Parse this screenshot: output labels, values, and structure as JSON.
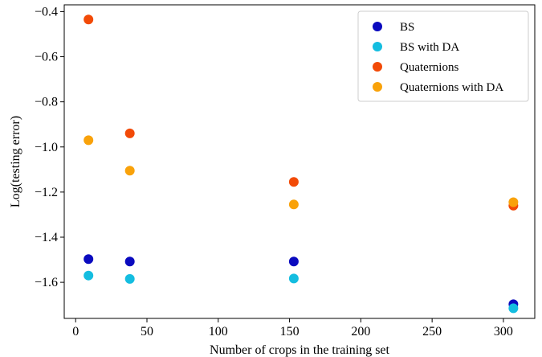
{
  "chart_data": {
    "type": "scatter",
    "title": "",
    "xlabel": "Number of crops in the training set",
    "ylabel": "Log(testing error)",
    "xlim": [
      -8,
      322
    ],
    "ylim": [
      -1.76,
      -0.37
    ],
    "xticks": [
      0,
      50,
      100,
      150,
      200,
      250,
      300
    ],
    "yticks": [
      -1.6,
      -1.4,
      -1.2,
      -1.0,
      -0.8,
      -0.6,
      -0.4
    ],
    "grid": false,
    "legend_position": "top-right",
    "series": [
      {
        "name": "BS",
        "color": "#0a0abf",
        "x": [
          9,
          38,
          153,
          307
        ],
        "y": [
          -1.497,
          -1.508,
          -1.508,
          -1.697
        ]
      },
      {
        "name": "BS with DA",
        "color": "#14bde0",
        "x": [
          9,
          38,
          153,
          307
        ],
        "y": [
          -1.57,
          -1.585,
          -1.583,
          -1.715
        ]
      },
      {
        "name": "Quaternions",
        "color": "#f24a07",
        "x": [
          9,
          38,
          153,
          307
        ],
        "y": [
          -0.435,
          -0.94,
          -1.155,
          -1.26
        ]
      },
      {
        "name": "Quaternions with DA",
        "color": "#f9a20a",
        "x": [
          9,
          38,
          153,
          307
        ],
        "y": [
          -0.97,
          -1.105,
          -1.255,
          -1.245
        ]
      }
    ]
  }
}
